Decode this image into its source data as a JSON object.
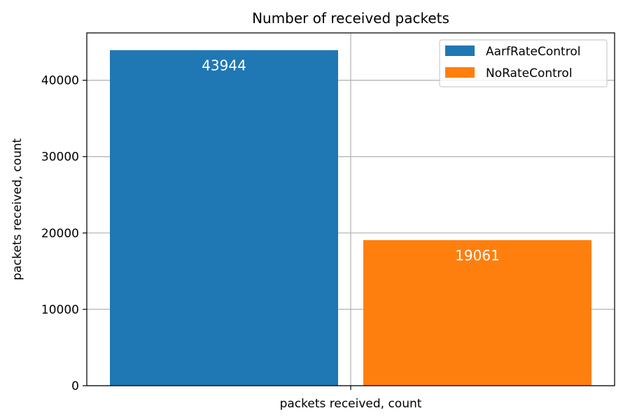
{
  "chart_data": {
    "type": "bar",
    "title": "Number of received packets",
    "xlabel": "packets received, count",
    "ylabel": "packets received, count",
    "ylim": [
      0,
      46200
    ],
    "yticks": [
      0,
      10000,
      20000,
      30000,
      40000
    ],
    "grid": true,
    "legend_position": "top-right",
    "series": [
      {
        "name": "AarfRateControl",
        "value": 43944,
        "label": "43944",
        "color": "#1f77b4"
      },
      {
        "name": "NoRateControl",
        "value": 19061,
        "label": "19061",
        "color": "#ff7f0e"
      }
    ]
  }
}
